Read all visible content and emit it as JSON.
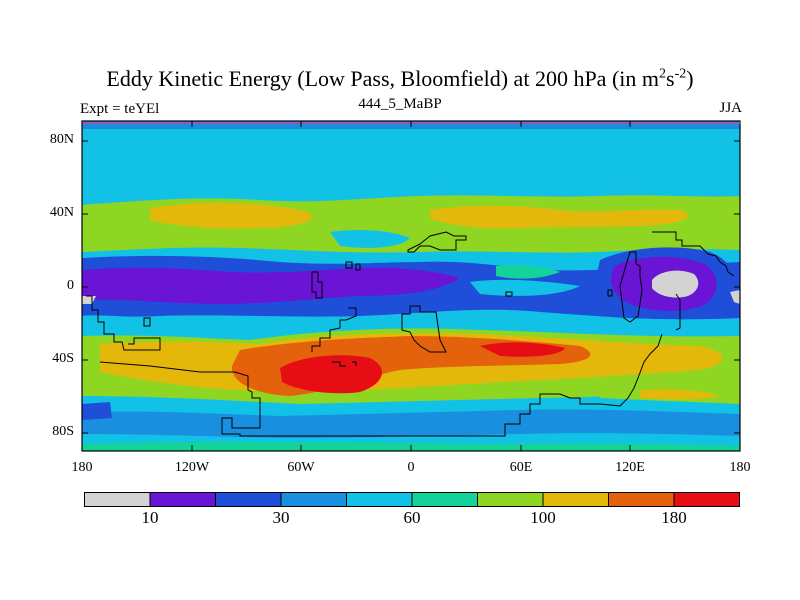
{
  "title": "Eddy Kinetic Energy (Low Pass, Bloomfield) at 200 hPa (in m",
  "title_units_base": "s",
  "title_sup1": "2",
  "title_sup2": "-2",
  "title_close": ")",
  "subtitle_left": "Expt = teYEl",
  "subtitle_center": "444_5_MaBP",
  "subtitle_right": "JJA",
  "lat_labels": [
    "80N",
    "40N",
    "0",
    "40S",
    "80S"
  ],
  "lon_labels": [
    "180",
    "120W",
    "60W",
    "0",
    "60E",
    "120E",
    "180"
  ],
  "colorbar": {
    "colors": [
      "#d3d3d3",
      "#6a14d6",
      "#1f4fd8",
      "#1a8fe0",
      "#12c1e6",
      "#14d39a",
      "#8fd623",
      "#e3b80b",
      "#e5620d",
      "#e60d15"
    ],
    "labels": [
      "10",
      "30",
      "60",
      "100",
      "180"
    ]
  }
}
